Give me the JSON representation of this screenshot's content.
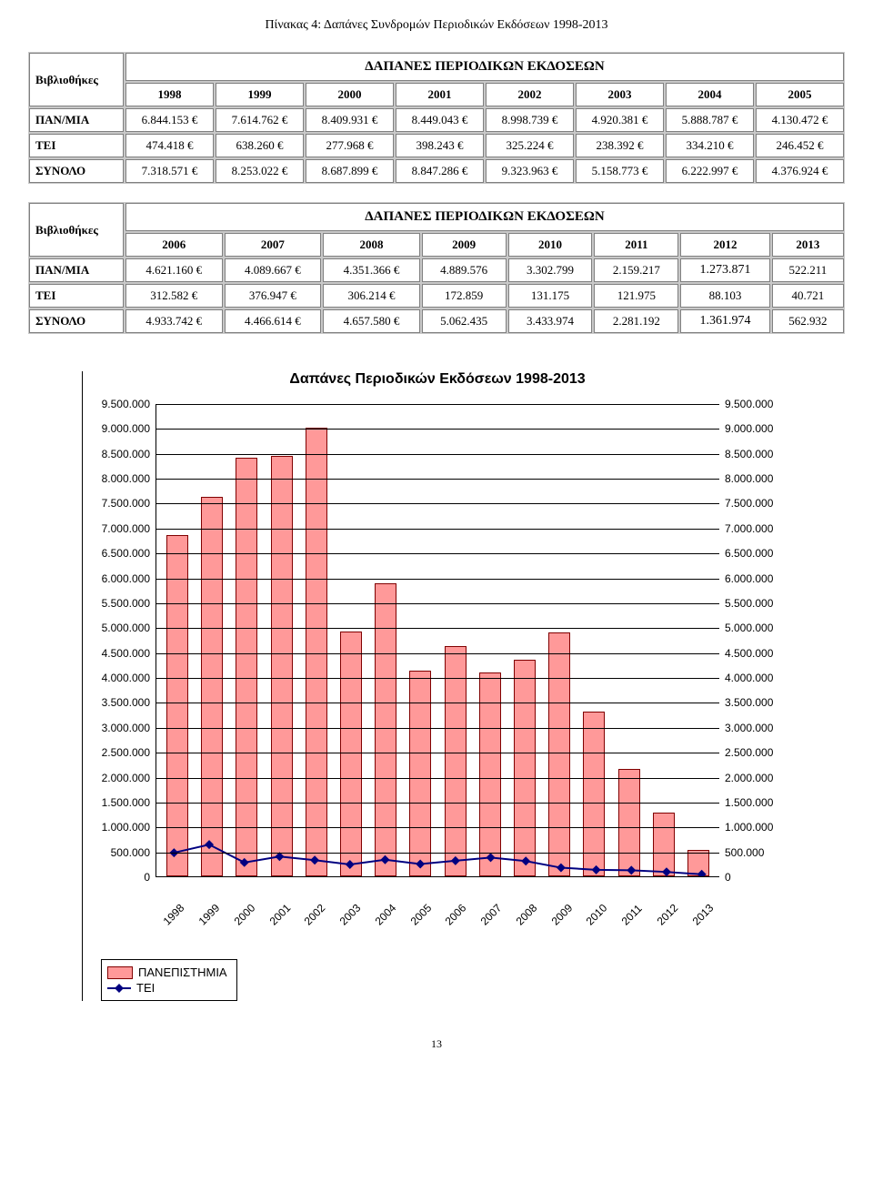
{
  "page_title": "Πίνακας 4: Δαπάνες Συνδρομών Περιοδικών Εκδόσεων 1998-2013",
  "table1": {
    "header": "ΔΑΠΑΝΕΣ ΠΕΡΙΟΔΙΚΩΝ ΕΚΔΟΣΕΩΝ",
    "row_header": "Βιβλιοθήκες",
    "years": [
      "1998",
      "1999",
      "2000",
      "2001",
      "2002",
      "2003",
      "2004",
      "2005"
    ],
    "rows": [
      {
        "label": "ΠΑΝ/ΜΙΑ",
        "cells": [
          "6.844.153 €",
          "7.614.762 €",
          "8.409.931 €",
          "8.449.043 €",
          "8.998.739 €",
          "4.920.381 €",
          "5.888.787 €",
          "4.130.472 €"
        ]
      },
      {
        "label": "ΤΕΙ",
        "cells": [
          "474.418 €",
          "638.260 €",
          "277.968 €",
          "398.243 €",
          "325.224 €",
          "238.392 €",
          "334.210 €",
          "246.452 €"
        ]
      },
      {
        "label": "ΣΥΝΟΛΟ",
        "cells": [
          "7.318.571 €",
          "8.253.022 €",
          "8.687.899 €",
          "8.847.286 €",
          "9.323.963 €",
          "5.158.773 €",
          "6.222.997 €",
          "4.376.924 €"
        ]
      }
    ]
  },
  "table2": {
    "header": "ΔΑΠΑΝΕΣ ΠΕΡΙΟΔΙΚΩΝ ΕΚΔΟΣΕΩΝ",
    "row_header": "Βιβλιοθήκες",
    "years": [
      "2006",
      "2007",
      "2008",
      "2009",
      "2010",
      "2011",
      "2012",
      "2013"
    ],
    "rows": [
      {
        "label": "ΠΑΝ/ΜΙΑ",
        "cells": [
          "4.621.160 €",
          "4.089.667 €",
          "4.351.366 €",
          "4.889.576",
          "3.302.799",
          "2.159.217",
          "1.273.871",
          "522.211"
        ]
      },
      {
        "label": "ΤΕΙ",
        "cells": [
          "312.582 €",
          "376.947 €",
          "306.214 €",
          "172.859",
          "131.175",
          "121.975",
          "88.103",
          "40.721"
        ]
      },
      {
        "label": "ΣΥΝΟΛΟ",
        "cells": [
          "4.933.742 €",
          "4.466.614 €",
          "4.657.580 €",
          "5.062.435",
          "3.433.974",
          "2.281.192",
          "1.361.974",
          "562.932"
        ]
      }
    ]
  },
  "chart": {
    "title": "Δαπάνες Περιοδικών Εκδόσεων 1998-2013",
    "type": "bar+line",
    "categories": [
      "1998",
      "1999",
      "2000",
      "2001",
      "2002",
      "2003",
      "2004",
      "2005",
      "2006",
      "2007",
      "2008",
      "2009",
      "2010",
      "2011",
      "2012",
      "2013"
    ],
    "bar_values": [
      6844153,
      7614762,
      8409931,
      8449043,
      8998739,
      4920381,
      5888787,
      4130472,
      4621160,
      4089667,
      4351366,
      4889576,
      3302799,
      2159217,
      1273871,
      522211
    ],
    "line_values": [
      474418,
      638260,
      277968,
      398243,
      325224,
      238392,
      334210,
      246452,
      312582,
      376947,
      306214,
      172859,
      131175,
      121975,
      88103,
      40721
    ],
    "y_max": 9500000,
    "y_min": 0,
    "y_step": 500000,
    "y_labels": [
      "9.500.000",
      "9.000.000",
      "8.500.000",
      "8.000.000",
      "7.500.000",
      "7.000.000",
      "6.500.000",
      "6.000.000",
      "5.500.000",
      "5.000.000",
      "4.500.000",
      "4.000.000",
      "3.500.000",
      "3.000.000",
      "2.500.000",
      "2.000.000",
      "1.500.000",
      "1.000.000",
      "500.000",
      "0"
    ],
    "bar_fill": "#ff9999",
    "bar_border": "#800000",
    "line_color": "#000080",
    "marker_fill": "#000080",
    "grid_color": "#000000",
    "background": "#ffffff",
    "legend": {
      "bar_label": "ΠΑΝΕΠΙΣΤΗΜΙΑ",
      "line_label": "ΤΕΙ"
    }
  },
  "page_number": "13"
}
